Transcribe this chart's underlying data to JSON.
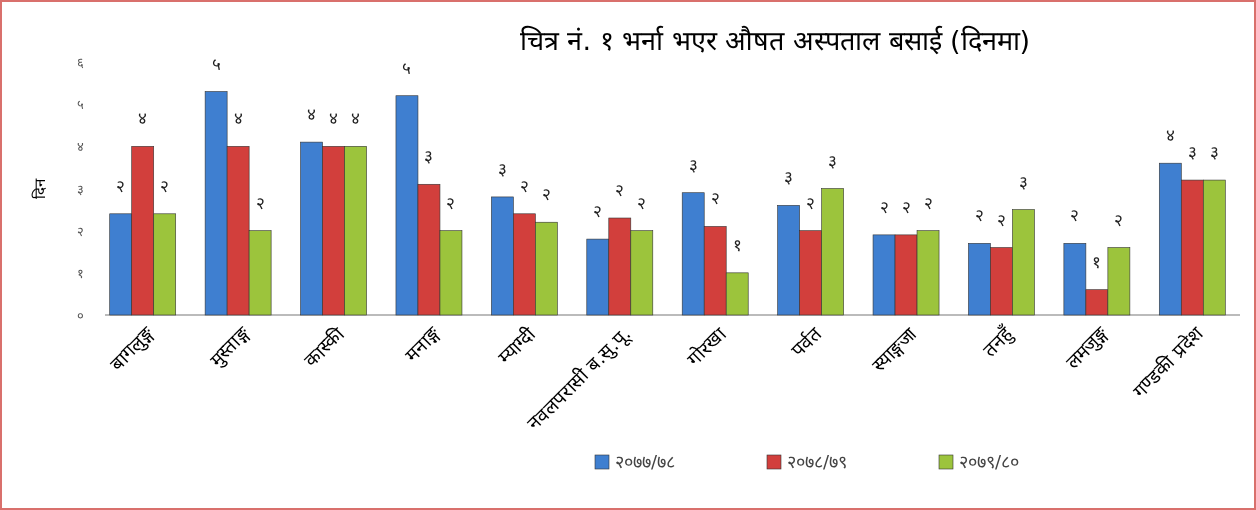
{
  "chart_data": {
    "type": "bar",
    "title": "चित्र नं. १ भर्ना भएर औषत अस्पताल बसाई (दिनमा)",
    "ylabel": "दिन",
    "categories": [
      "बागलुङ्ग",
      "मुस्ताङ्ग",
      "कास्की",
      "मनाङ्ग",
      "म्याग्दी",
      "नवलपरासी ब.सु.पू.",
      "गोरखा",
      "पर्वत",
      "स्याङ्गजा",
      "तनहुँ",
      "लमजुङ्ग",
      "गण्डकी प्रदेश"
    ],
    "ylim": [
      0,
      6
    ],
    "yticks": [
      {
        "value": 0,
        "label": "०"
      },
      {
        "value": 1,
        "label": "१"
      },
      {
        "value": 2,
        "label": "२"
      },
      {
        "value": 3,
        "label": "३"
      },
      {
        "value": 4,
        "label": "४"
      },
      {
        "value": 5,
        "label": "५"
      },
      {
        "value": 6,
        "label": "६"
      }
    ],
    "series": [
      {
        "name": "२०७७/७८",
        "color": "#3f7fd0",
        "values": [
          2.4,
          5.3,
          4.1,
          5.2,
          2.8,
          1.8,
          2.9,
          2.6,
          1.9,
          1.7,
          1.7,
          3.6
        ],
        "value_labels": [
          "२",
          "५",
          "४",
          "५",
          "३",
          "२",
          "३",
          "३",
          "२",
          "२",
          "२",
          "४"
        ]
      },
      {
        "name": "२०७८/७९",
        "color": "#d23f3c",
        "values": [
          4.0,
          4.0,
          4.0,
          3.1,
          2.4,
          2.3,
          2.1,
          2.0,
          1.9,
          1.6,
          0.6,
          3.2
        ],
        "value_labels": [
          "४",
          "४",
          "४",
          "३",
          "२",
          "२",
          "२",
          "२",
          "२",
          "२",
          "१",
          "३"
        ]
      },
      {
        "name": "२०७९/८०",
        "color": "#9cc43c",
        "values": [
          2.4,
          2.0,
          4.0,
          2.0,
          2.2,
          2.0,
          1.0,
          3.0,
          2.0,
          2.5,
          1.6,
          3.2
        ],
        "value_labels": [
          "२",
          "२",
          "४",
          "२",
          "२",
          "२",
          "१",
          "३",
          "२",
          "३",
          "२",
          "३"
        ]
      }
    ],
    "legend": "bottom",
    "grid": false
  }
}
